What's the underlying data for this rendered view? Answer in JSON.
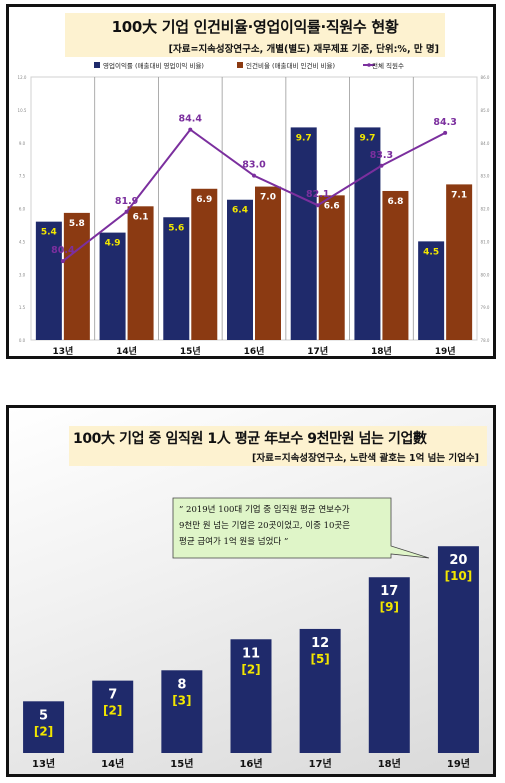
{
  "chart_data": [
    {
      "type": "bar",
      "title": "100大 기업 인건비율·영업이익률·직원수 현황",
      "subtitle": "[자료=지속성장연구소, 개별(별도) 재무제표 기준, 단위:%, 만 명]",
      "categories": [
        "13년",
        "14년",
        "15년",
        "16년",
        "17년",
        "18년",
        "19년"
      ],
      "ylim": [
        0,
        12
      ],
      "y2lim": [
        78,
        86
      ],
      "left_ticks": [
        "0.0",
        "1.5",
        "3.0",
        "4.5",
        "6.0",
        "7.5",
        "9.0",
        "10.5",
        "12.0"
      ],
      "right_ticks": [
        "78.0",
        "79.0",
        "80.0",
        "81.0",
        "82.0",
        "83.0",
        "84.0",
        "85.0",
        "86.0"
      ],
      "legend_position": "top",
      "series": [
        {
          "name": "영업이익률 (매출대비 영업이익 비율)",
          "kind": "bar",
          "color": "#1f2a6b",
          "values": [
            5.4,
            4.9,
            5.6,
            6.4,
            9.7,
            9.7,
            4.5
          ]
        },
        {
          "name": "인건비율 (매출대비 인건비 비율)",
          "kind": "bar",
          "color": "#8b3a12",
          "values": [
            5.8,
            6.1,
            6.9,
            7.0,
            6.6,
            6.8,
            7.1
          ]
        },
        {
          "name": "전체 직원수",
          "kind": "line",
          "axis": "right",
          "color": "#7b2f9e",
          "values": [
            80.4,
            81.9,
            84.4,
            83.0,
            82.1,
            83.3,
            84.3
          ]
        }
      ]
    },
    {
      "type": "bar",
      "title": "100大 기업 중 임직원 1人 평균 年보수 9천만원 넘는 기업數",
      "subtitle": "[자료=지속성장연구소, 노란색 괄호는 1억 넘는 기업수]",
      "categories": [
        "13년",
        "14년",
        "15년",
        "16년",
        "17년",
        "18년",
        "19년"
      ],
      "ylim": [
        0,
        22
      ],
      "series": [
        {
          "name": "",
          "color": "#1f2a6b",
          "values": [
            5,
            7,
            8,
            11,
            12,
            17,
            20
          ]
        },
        {
          "name": "",
          "color": "#f2e600",
          "values": [
            2,
            2,
            3,
            2,
            5,
            9,
            10
          ]
        }
      ],
      "annotation": {
        "line1": "” 2019년 100대 기업 중 임직원  평균 연보수가",
        "line2": "9천만 원 넘는 기업은 20곳이었고, 이중 10곳은",
        "line3": "평균 급여가 1억 원을 넘었다 ”"
      }
    }
  ]
}
